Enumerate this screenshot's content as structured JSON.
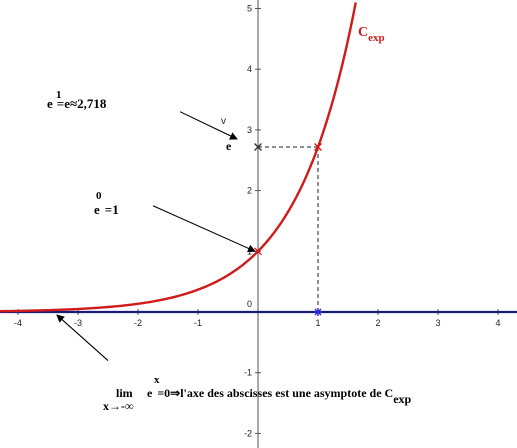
{
  "chart_data": {
    "type": "line",
    "title": "",
    "xlabel": "",
    "ylabel": "",
    "xlim": [
      -4.3,
      4.3
    ],
    "ylim": [
      -2.2,
      5.1
    ],
    "grid": false,
    "x_ticks": [
      -4,
      -3,
      -2,
      -1,
      1,
      2,
      3,
      4
    ],
    "y_ticks": [
      -2,
      -1,
      1,
      2,
      3,
      4,
      5
    ],
    "origin_label": "0",
    "series": [
      {
        "name": "C",
        "name_subscript": "exp",
        "color": "#d11a1a",
        "function": "exp(x)",
        "x": [
          -4.3,
          -4.0,
          -3.5,
          -3.0,
          -2.5,
          -2.0,
          -1.5,
          -1.0,
          -0.5,
          0.0,
          0.25,
          0.5,
          0.75,
          1.0,
          1.25,
          1.5,
          1.63
        ],
        "y": [
          0.014,
          0.018,
          0.03,
          0.05,
          0.082,
          0.135,
          0.223,
          0.368,
          0.607,
          1.0,
          1.284,
          1.649,
          2.117,
          2.718,
          3.49,
          4.482,
          5.1
        ]
      }
    ],
    "asymptote": {
      "y": 0,
      "color": "#1a1a7a"
    },
    "points": [
      {
        "x": 0,
        "y": 1,
        "marker": "x",
        "color": "#d11a1a"
      },
      {
        "x": 1,
        "y": 2.718,
        "marker": "x",
        "color": "#d11a1a"
      },
      {
        "x": 0,
        "y": 2.718,
        "marker": "x",
        "color": "#333333"
      },
      {
        "x": 1,
        "y": 0,
        "marker": "star",
        "color": "#2a2ad8"
      }
    ],
    "guides": [
      {
        "from": [
          1,
          0
        ],
        "to": [
          1,
          2.718
        ],
        "style": "dashed"
      },
      {
        "from": [
          0,
          2.718
        ],
        "to": [
          1,
          2.718
        ],
        "style": "dashed"
      }
    ],
    "annotations": {
      "e_one": {
        "base": "e",
        "exponent": "1",
        "rest": "=e≈2,718"
      },
      "e_zero": {
        "base": "e",
        "exponent": "0",
        "rest": "=1"
      },
      "e_label": "e",
      "v_label": "v",
      "limit": {
        "operator": "lim",
        "under": "x→-∞",
        "base": "e",
        "exponent": "x",
        "rest": "=0⇒l'axe des abscisses est une asymptote de C",
        "subscript": "exp"
      }
    },
    "arrows": [
      {
        "from": [
          -1.75,
          1.75
        ],
        "to": [
          -0.05,
          1.0
        ]
      },
      {
        "from": [
          -1.3,
          3.3
        ],
        "to": [
          -0.35,
          2.85
        ]
      },
      {
        "from": [
          -2.5,
          -0.8
        ],
        "to": [
          -3.35,
          -0.05
        ]
      }
    ]
  }
}
